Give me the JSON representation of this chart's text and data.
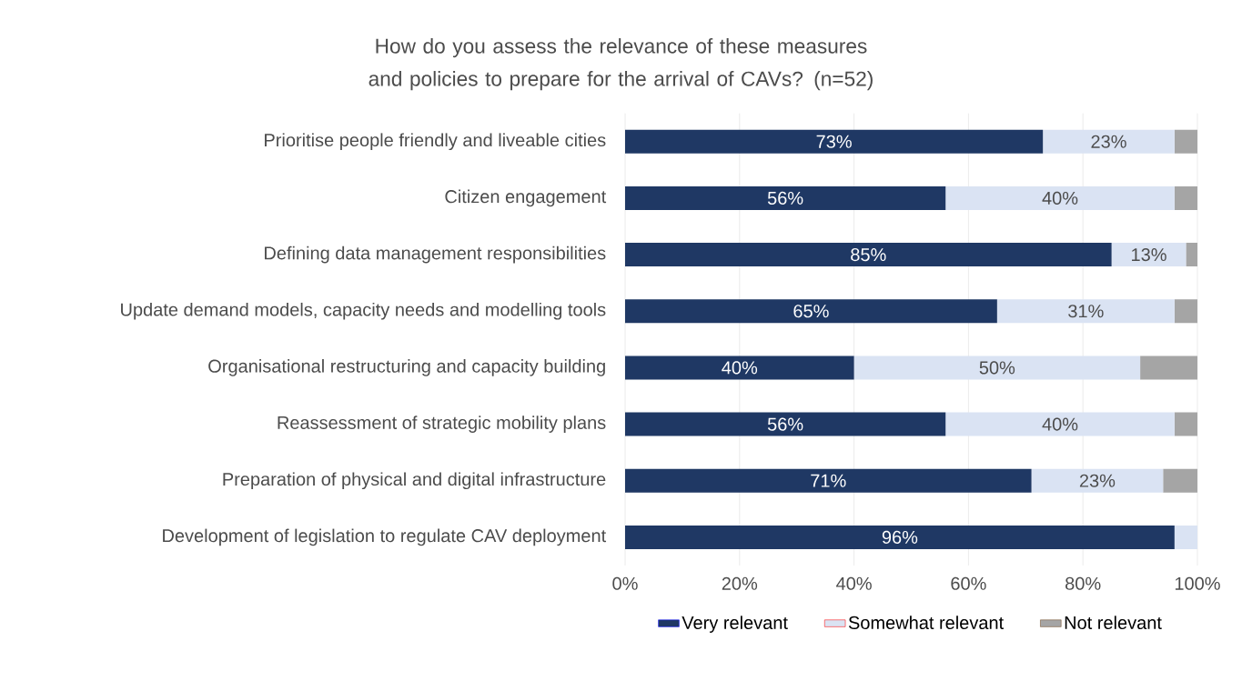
{
  "chart_data": {
    "type": "bar",
    "orientation": "horizontal",
    "stacked": true,
    "title": "How do you assess the relevance of these measures and policies to prepare for the arrival of CAVs? (n=52)",
    "categories": [
      "Prioritise people friendly and liveable cities",
      "Citizen engagement",
      "Defining data management responsibilities",
      "Update demand models, capacity needs and modelling tools",
      "Organisational restructuring and capacity building",
      "Reassessment of strategic mobility plans",
      "Preparation of physical and digital infrastructure",
      "Development of legislation to regulate CAV deployment"
    ],
    "series": [
      {
        "name": "Very relevant",
        "color": "#1f3864",
        "values": [
          73,
          56,
          85,
          65,
          40,
          56,
          71,
          96
        ],
        "value_labels": [
          "73%",
          "56%",
          "85%",
          "65%",
          "40%",
          "56%",
          "71%",
          "96%"
        ]
      },
      {
        "name": "Somewhat relevant",
        "color": "#dae3f3",
        "values": [
          23,
          40,
          13,
          31,
          50,
          40,
          23,
          4
        ],
        "value_labels": [
          "23%",
          "40%",
          "13%",
          "31%",
          "50%",
          "40%",
          "23%",
          null
        ]
      },
      {
        "name": "Not relevant",
        "color": "#a5a5a5",
        "values": [
          4,
          4,
          2,
          4,
          10,
          4,
          6,
          0
        ]
      }
    ],
    "xlim": [
      0,
      100
    ],
    "xticks": [
      {
        "value": 0,
        "label": "0%"
      },
      {
        "value": 20,
        "label": "20%"
      },
      {
        "value": 40,
        "label": "40%"
      },
      {
        "value": 60,
        "label": "60%"
      },
      {
        "value": 80,
        "label": "80%"
      },
      {
        "value": 100,
        "label": "100%"
      }
    ],
    "grid": "x",
    "legend": "bottom"
  }
}
